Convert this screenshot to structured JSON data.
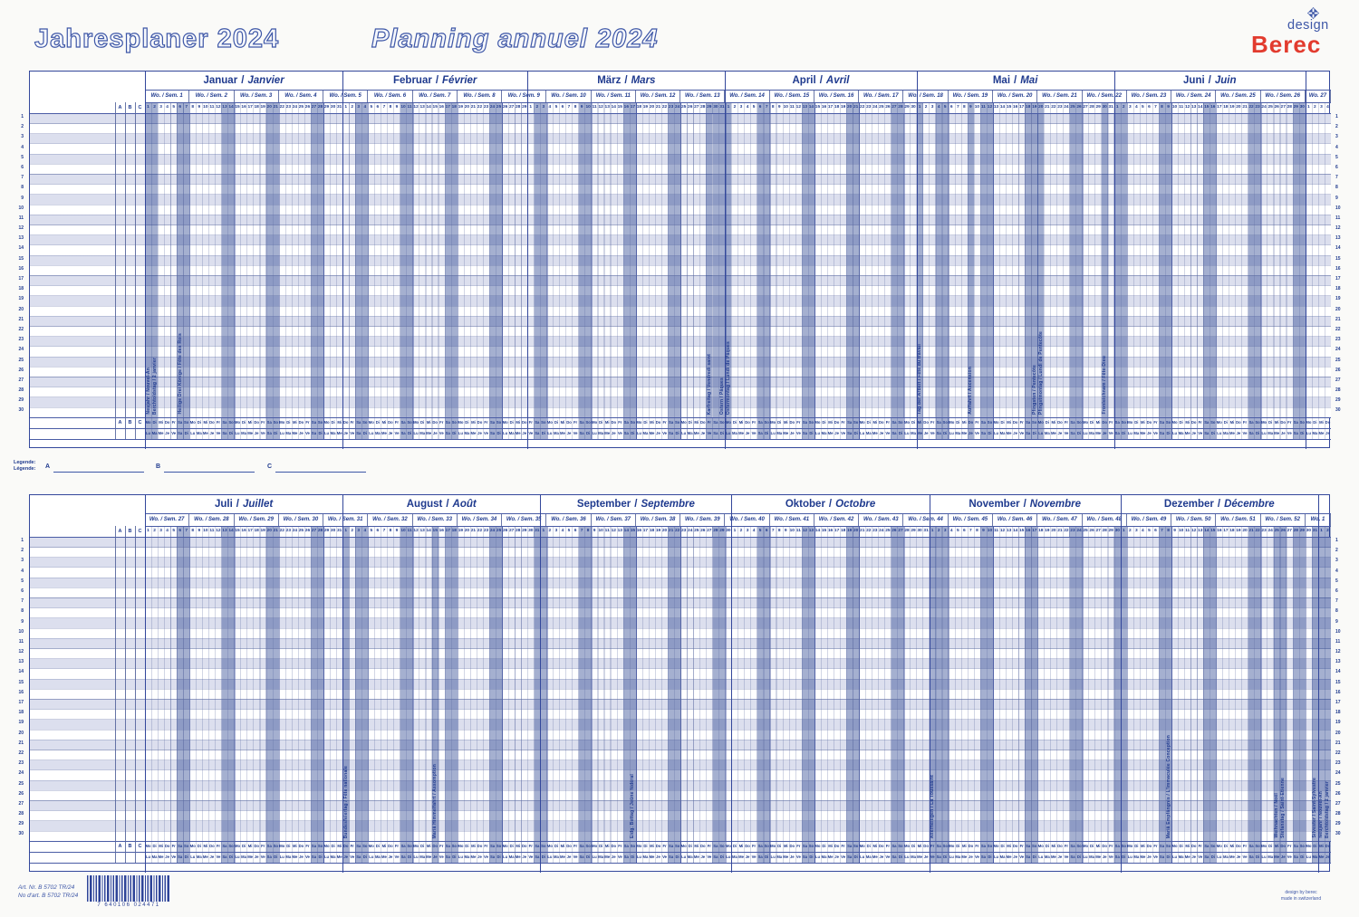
{
  "header": {
    "title_de": "Jahresplaner 2024",
    "title_fr": "Planning annuel 2024",
    "logo_design": "design",
    "logo_berec": "Berec"
  },
  "legend": {
    "label_de": "Legende:",
    "label_fr": "Légende:",
    "items": [
      "A",
      "B",
      "C"
    ]
  },
  "print_footer": {
    "art_no_de": "Art. Nr. B 5702 TR/24",
    "art_no_fr": "No d'art. B 5702 TR/24",
    "barcode_text": "7 640106 024471",
    "credit_1": "design by berec",
    "credit_2": "made in switzerland"
  },
  "colors": {
    "accent_blue": "#3e57a7",
    "text_blue": "#1f3a8e",
    "berec_red": "#e23b2e",
    "row_tint": "#dcdfee",
    "weekend_overlay": "rgba(5,35,125,0.36)",
    "grid_line": "#33479b"
  },
  "calendar": {
    "row_count": 30,
    "abc": [
      "A",
      "B",
      "C"
    ],
    "day_abbr_de": [
      "Mo",
      "Di",
      "Mi",
      "Do",
      "Fr",
      "Sa",
      "So"
    ],
    "day_abbr_fr": [
      "Lu",
      "Ma",
      "Me",
      "Je",
      "Ve",
      "Sa",
      "Di"
    ],
    "halves": [
      {
        "months": [
          {
            "de": "Januar",
            "fr": "Janvier",
            "days": 31
          },
          {
            "de": "Februar",
            "fr": "Février",
            "days": 29
          },
          {
            "de": "März",
            "fr": "Mars",
            "days": 31
          },
          {
            "de": "April",
            "fr": "Avril",
            "days": 30
          },
          {
            "de": "Mai",
            "fr": "Mai",
            "days": 31
          },
          {
            "de": "Juni",
            "fr": "Juin",
            "days": 30
          }
        ],
        "extra_days": 4,
        "weeks": [
          "Wo. / Sem. 1",
          "Wo. / Sem. 2",
          "Wo. / Sem. 3",
          "Wo. / Sem. 4",
          "Wo. / Sem. 5",
          "Wo. / Sem. 6",
          "Wo. / Sem. 7",
          "Wo. / Sem. 8",
          "Wo. / Sem. 9",
          "Wo. / Sem. 10",
          "Wo. / Sem. 11",
          "Wo. / Sem. 12",
          "Wo. / Sem. 13",
          "Wo. / Sem. 14",
          "Wo. / Sem. 15",
          "Wo. / Sem. 16",
          "Wo. / Sem. 17",
          "Wo. / Sem. 18",
          "Wo. / Sem. 19",
          "Wo. / Sem. 20",
          "Wo. / Sem. 21",
          "Wo. / Sem. 22",
          "Wo. / Sem. 23",
          "Wo. / Sem. 24",
          "Wo. / Sem. 25",
          "Wo. / Sem. 26",
          "Wo. 27"
        ],
        "holidays": [
          {
            "month": 1,
            "day": 1,
            "label": "Neujahr / Nouvel-An"
          },
          {
            "month": 1,
            "day": 2,
            "label": "Berchtoldstag / 2 janvier"
          },
          {
            "month": 1,
            "day": 6,
            "label": "Heilige Drei Könige / Fête des Rois"
          },
          {
            "month": 3,
            "day": 29,
            "label": "Karfreitag / Vendredi saint"
          },
          {
            "month": 3,
            "day": 31,
            "label": "Ostern / Pâques"
          },
          {
            "month": 4,
            "day": 1,
            "label": "Ostermontag / Lundi de Pâques"
          },
          {
            "month": 5,
            "day": 1,
            "label": "Tag der Arbeit / Fête du travail"
          },
          {
            "month": 5,
            "day": 9,
            "label": "Auffahrt / Ascension"
          },
          {
            "month": 5,
            "day": 19,
            "label": "Pfingsten / Pentecôte"
          },
          {
            "month": 5,
            "day": 20,
            "label": "Pfingstmontag / Lundi de Pentecôte"
          },
          {
            "month": 5,
            "day": 30,
            "label": "Fronleichnam / Fête-Dieu"
          }
        ]
      },
      {
        "months": [
          {
            "de": "Juli",
            "fr": "Juillet",
            "days": 31
          },
          {
            "de": "August",
            "fr": "Août",
            "days": 31
          },
          {
            "de": "September",
            "fr": "Septembre",
            "days": 30
          },
          {
            "de": "Oktober",
            "fr": "Octobre",
            "days": 31
          },
          {
            "de": "November",
            "fr": "Novembre",
            "days": 30
          },
          {
            "de": "Dezember",
            "fr": "Décembre",
            "days": 31
          }
        ],
        "extra_days": 2,
        "weeks": [
          "Wo. / Sem. 27",
          "Wo. / Sem. 28",
          "Wo. / Sem. 29",
          "Wo. / Sem. 30",
          "Wo. / Sem. 31",
          "Wo. / Sem. 32",
          "Wo. / Sem. 33",
          "Wo. / Sem. 34",
          "Wo. / Sem. 35",
          "Wo. / Sem. 36",
          "Wo. / Sem. 37",
          "Wo. / Sem. 38",
          "Wo. / Sem. 39",
          "Wo. / Sem. 40",
          "Wo. / Sem. 41",
          "Wo. / Sem. 42",
          "Wo. / Sem. 43",
          "Wo. / Sem. 44",
          "Wo. / Sem. 45",
          "Wo. / Sem. 46",
          "Wo. / Sem. 47",
          "Wo. / Sem. 48",
          "Wo. / Sem. 49",
          "Wo. / Sem. 50",
          "Wo. / Sem. 51",
          "Wo. / Sem. 52",
          "Wo. 1"
        ],
        "holidays": [
          {
            "month": 2,
            "day": 1,
            "label": "Bundesfeiertag / Fête nationale"
          },
          {
            "month": 2,
            "day": 15,
            "label": "Mariä Himmelfahrt / Assomption"
          },
          {
            "month": 3,
            "day": 15,
            "label": "Eidg. Bettag / Jeûne fédéral"
          },
          {
            "month": 5,
            "day": 1,
            "label": "Allerheiligen / La Toussaint"
          },
          {
            "month": 6,
            "day": 8,
            "label": "Mariä Empfängnis / L'Immaculée Conception"
          },
          {
            "month": 6,
            "day": 25,
            "label": "Weihnachten / Noël"
          },
          {
            "month": 6,
            "day": 26,
            "label": "Stefanstag / Saint-Etienne"
          },
          {
            "month": 6,
            "day": 31,
            "label": "Silvester / Saint-Sylvestre"
          },
          {
            "month": 7,
            "day": 1,
            "label": "Neujahr / Nouvel-An"
          },
          {
            "month": 7,
            "day": 2,
            "label": "Berchtoldstag / 2 janvier"
          }
        ]
      }
    ]
  }
}
